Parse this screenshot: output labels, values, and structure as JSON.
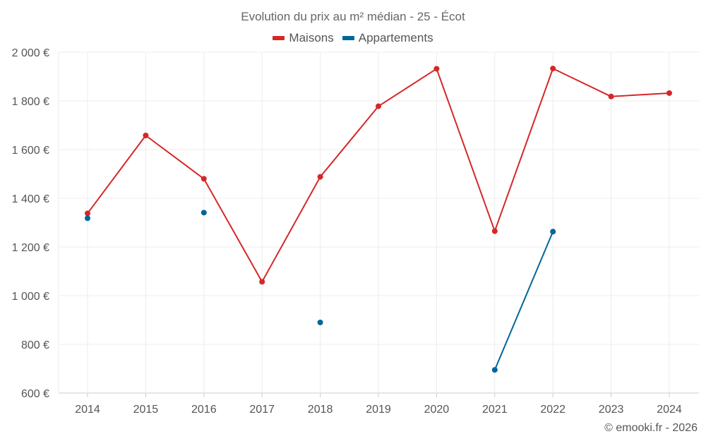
{
  "chart_data": {
    "type": "line",
    "title": "Evolution du prix au m² médian - 25 - Écot",
    "categories": [
      "2014",
      "2015",
      "2016",
      "2017",
      "2018",
      "2019",
      "2020",
      "2021",
      "2022",
      "2023",
      "2024"
    ],
    "series": [
      {
        "name": "Maisons",
        "color": "#d62728",
        "values": [
          1338,
          1658,
          1480,
          1057,
          1488,
          1778,
          1932,
          1265,
          1933,
          1818,
          1832
        ]
      },
      {
        "name": "Appartements",
        "color": "#006699",
        "values": [
          1318,
          null,
          1341,
          null,
          890,
          null,
          null,
          695,
          1263,
          null,
          null
        ]
      }
    ],
    "ylim": [
      600,
      2000
    ],
    "yticks": [
      600,
      800,
      1000,
      1200,
      1400,
      1600,
      1800,
      2000
    ],
    "ytick_labels": [
      "600 €",
      "800 €",
      "1 000 €",
      "1 200 €",
      "1 400 €",
      "1 600 €",
      "1 800 €",
      "2 000 €"
    ],
    "xlabel": "",
    "ylabel": "",
    "grid": true,
    "legend_position": "top-center"
  },
  "credit": "© emooki.fr - 2026"
}
